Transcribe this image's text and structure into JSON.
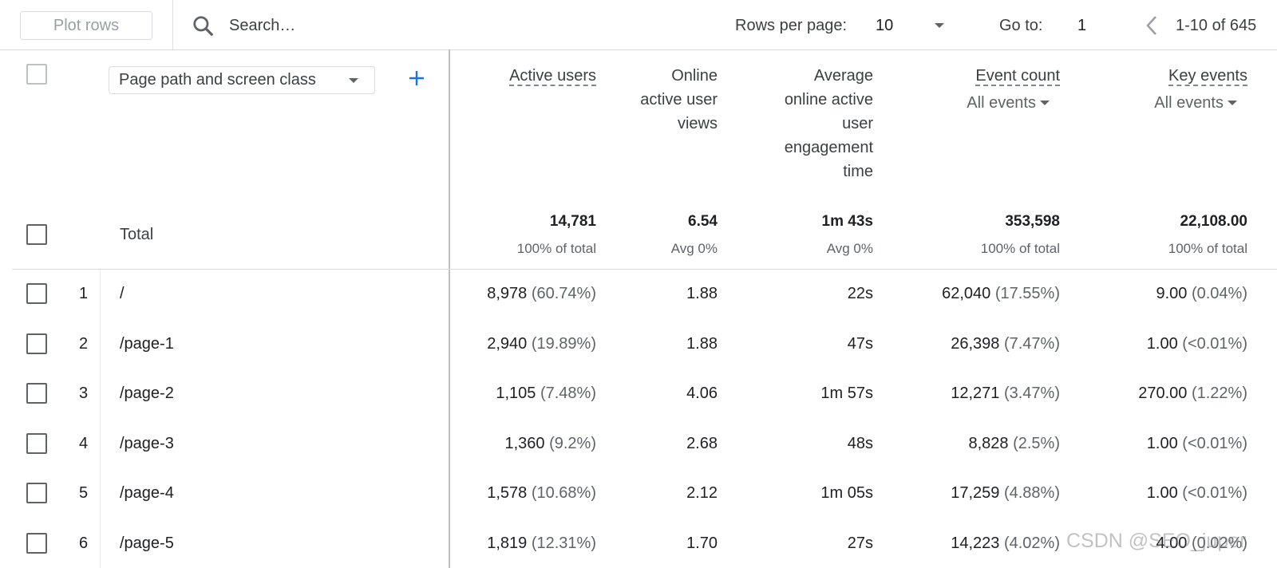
{
  "toolbar": {
    "plot_rows": "Plot rows",
    "search_placeholder": "Search…",
    "rows_per_page_label": "Rows per page:",
    "rows_per_page": "10",
    "go_to_label": "Go to:",
    "go_to": "1",
    "range": "1-10 of 645"
  },
  "table": {
    "dimension": "Page path and screen class",
    "columns": [
      {
        "title": "Active users",
        "underlined": true
      },
      {
        "title": "Online active user views",
        "underlined": false
      },
      {
        "title": "Average online active user engagement time",
        "underlined": false
      },
      {
        "title": "Event count",
        "underlined": true,
        "filter": "All events"
      },
      {
        "title": "Key events",
        "underlined": true,
        "filter": "All events"
      }
    ],
    "totals": {
      "label": "Total",
      "values": [
        {
          "value": "14,781",
          "note": "100% of total"
        },
        {
          "value": "6.54",
          "note": "Avg 0%"
        },
        {
          "value": "1m 43s",
          "note": "Avg 0%"
        },
        {
          "value": "353,598",
          "note": "100% of total"
        },
        {
          "value": "22,108.00",
          "note": "100% of total"
        }
      ]
    },
    "rows": [
      {
        "index": "1",
        "path": "/",
        "cells": [
          {
            "value": "8,978",
            "share": "(60.74%)"
          },
          {
            "value": "1.88"
          },
          {
            "value": "22s"
          },
          {
            "value": "62,040",
            "share": "(17.55%)"
          },
          {
            "value": "9.00",
            "share": "(0.04%)"
          }
        ]
      },
      {
        "index": "2",
        "path": "/page-1",
        "cells": [
          {
            "value": "2,940",
            "share": "(19.89%)"
          },
          {
            "value": "1.88"
          },
          {
            "value": "47s"
          },
          {
            "value": "26,398",
            "share": "(7.47%)"
          },
          {
            "value": "1.00",
            "share": "(<0.01%)"
          }
        ]
      },
      {
        "index": "3",
        "path": "/page-2",
        "cells": [
          {
            "value": "1,105",
            "share": "(7.48%)"
          },
          {
            "value": "4.06"
          },
          {
            "value": "1m 57s"
          },
          {
            "value": "12,271",
            "share": "(3.47%)"
          },
          {
            "value": "270.00",
            "share": "(1.22%)"
          }
        ]
      },
      {
        "index": "4",
        "path": "/page-3",
        "cells": [
          {
            "value": "1,360",
            "share": "(9.2%)"
          },
          {
            "value": "2.68"
          },
          {
            "value": "48s"
          },
          {
            "value": "8,828",
            "share": "(2.5%)"
          },
          {
            "value": "1.00",
            "share": "(<0.01%)"
          }
        ]
      },
      {
        "index": "5",
        "path": "/page-4",
        "cells": [
          {
            "value": "1,578",
            "share": "(10.68%)"
          },
          {
            "value": "2.12"
          },
          {
            "value": "1m 05s"
          },
          {
            "value": "17,259",
            "share": "(4.88%)"
          },
          {
            "value": "1.00",
            "share": "(<0.01%)"
          }
        ]
      },
      {
        "index": "6",
        "path": "/page-5",
        "cells": [
          {
            "value": "1,819",
            "share": "(12.31%)"
          },
          {
            "value": "1.70"
          },
          {
            "value": "27s"
          },
          {
            "value": "14,223",
            "share": "(4.02%)"
          },
          {
            "value": "4.00",
            "share": "(0.02%)"
          }
        ]
      }
    ]
  },
  "watermark": "CSDN @SEO_juper"
}
